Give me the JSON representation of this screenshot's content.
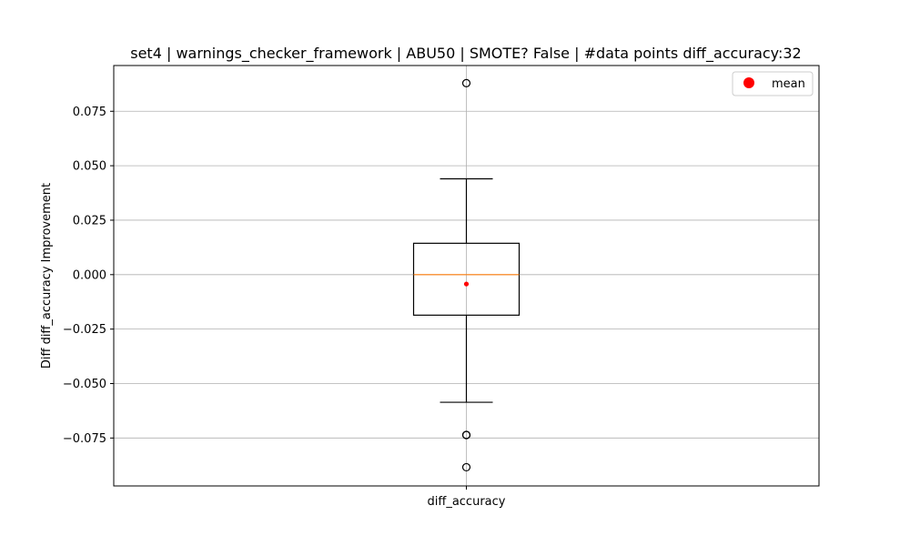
{
  "chart_data": {
    "type": "box",
    "title": "set4 | warnings_checker_framework | ABU50 | SMOTE? False | #data points diff_accuracy:32",
    "ylabel": "Diff diff_accuracy Improvement",
    "xlabel": "",
    "categories": [
      "diff_accuracy"
    ],
    "ylim": [
      -0.097,
      0.096
    ],
    "yticks": [
      -0.075,
      -0.05,
      -0.025,
      0.0,
      0.025,
      0.05,
      0.075
    ],
    "ytick_labels": [
      "−0.075",
      "−0.050",
      "−0.025",
      "0.000",
      "0.025",
      "0.050",
      "0.075"
    ],
    "grid": true,
    "legend": {
      "entries": [
        "mean"
      ],
      "placement": "top-right"
    },
    "boxes": [
      {
        "name": "diff_accuracy",
        "whisker_low": -0.0586,
        "q1": -0.0186,
        "median": 0.0,
        "q3": 0.0144,
        "whisker_high": 0.044,
        "mean": -0.0043,
        "outliers": [
          0.0879,
          -0.0736,
          -0.0736,
          -0.0884
        ]
      }
    ],
    "colors": {
      "box": "#000000",
      "median": "#ff7f0e",
      "mean": "#ff0000",
      "grid": "#b0b0b0"
    }
  }
}
